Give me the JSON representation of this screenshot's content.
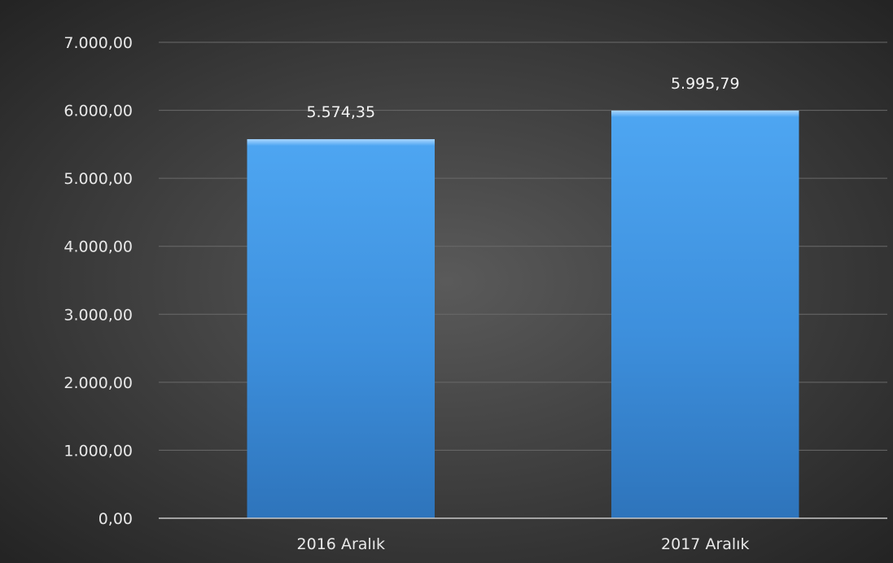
{
  "chart_data": {
    "type": "bar",
    "title": "",
    "xlabel": "",
    "ylabel": "",
    "categories": [
      "2016 Aralık",
      "2017 Aralık"
    ],
    "values": [
      5574.35,
      5995.79
    ],
    "value_labels": [
      "5.574,35",
      "5.995,79"
    ],
    "ylim": [
      0,
      7000
    ],
    "yticks": [
      0,
      1000,
      2000,
      3000,
      4000,
      5000,
      6000,
      7000
    ],
    "ytick_labels": [
      "0,00",
      "1.000,00",
      "2.000,00",
      "3.000,00",
      "4.000,00",
      "5.000,00",
      "6.000,00",
      "7.000,00"
    ],
    "grid": true,
    "legend": "none"
  },
  "colors": {
    "background_center": "#5a5a5a",
    "background_edge": "#232323",
    "bar_top": "#4aa3f0",
    "bar_bottom": "#2f78c0",
    "text": "#e8e8e8"
  }
}
